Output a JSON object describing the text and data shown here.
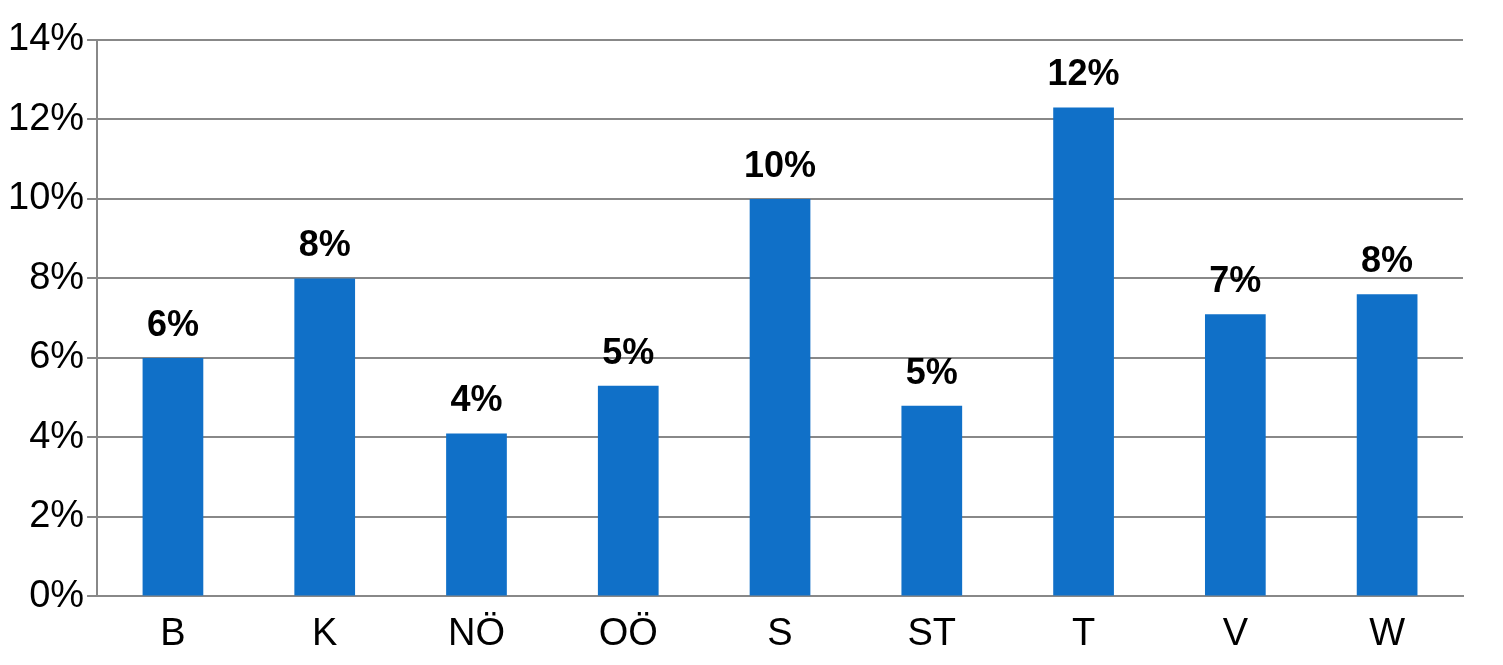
{
  "chart_data": {
    "type": "bar",
    "categories": [
      "B",
      "K",
      "NÖ",
      "OÖ",
      "S",
      "ST",
      "T",
      "V",
      "W"
    ],
    "values": [
      6.0,
      8.0,
      4.1,
      5.3,
      10.0,
      4.8,
      12.3,
      7.1,
      7.6
    ],
    "value_labels": [
      "6%",
      "8%",
      "4%",
      "5%",
      "10%",
      "5%",
      "12%",
      "7%",
      "8%"
    ],
    "color": "#1070c8",
    "ylim": [
      0,
      14
    ],
    "yticks": [
      {
        "value": 0,
        "label": "0%"
      },
      {
        "value": 2,
        "label": "2%"
      },
      {
        "value": 4,
        "label": "4%"
      },
      {
        "value": 6,
        "label": "6%"
      },
      {
        "value": 8,
        "label": "8%"
      },
      {
        "value": 10,
        "label": "10%"
      },
      {
        "value": 12,
        "label": "12%"
      },
      {
        "value": 14,
        "label": "14%"
      }
    ],
    "grid": "y",
    "legend": false
  }
}
